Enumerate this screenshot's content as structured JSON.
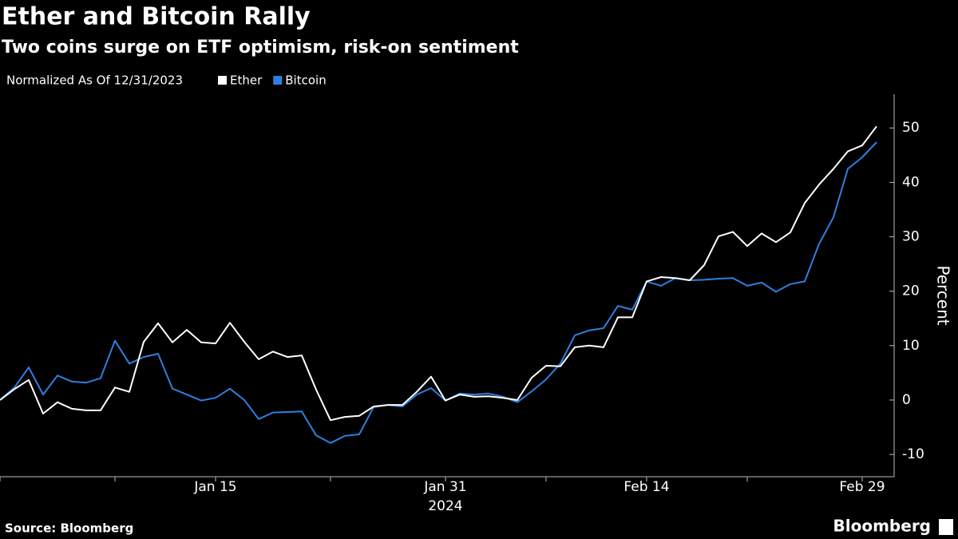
{
  "chart_data": {
    "type": "line",
    "title": "Ether and Bitcoin Rally",
    "subtitle": "Two coins surge on ETF optimism, risk-on sentiment",
    "legend_title": "Normalized As Of 12/31/2023",
    "y_label": "Percent",
    "x_sublabel": "2024",
    "source": "Source: Bloomberg",
    "brand": "Bloomberg",
    "x": [
      "2023-12-31",
      "2024-01-01",
      "2024-01-02",
      "2024-01-03",
      "2024-01-04",
      "2024-01-05",
      "2024-01-06",
      "2024-01-07",
      "2024-01-08",
      "2024-01-09",
      "2024-01-10",
      "2024-01-11",
      "2024-01-12",
      "2024-01-13",
      "2024-01-14",
      "2024-01-15",
      "2024-01-16",
      "2024-01-17",
      "2024-01-18",
      "2024-01-19",
      "2024-01-20",
      "2024-01-21",
      "2024-01-22",
      "2024-01-23",
      "2024-01-24",
      "2024-01-25",
      "2024-01-26",
      "2024-01-27",
      "2024-01-28",
      "2024-01-29",
      "2024-01-30",
      "2024-01-31",
      "2024-02-01",
      "2024-02-02",
      "2024-02-03",
      "2024-02-04",
      "2024-02-05",
      "2024-02-06",
      "2024-02-07",
      "2024-02-08",
      "2024-02-09",
      "2024-02-10",
      "2024-02-11",
      "2024-02-12",
      "2024-02-13",
      "2024-02-14",
      "2024-02-15",
      "2024-02-16",
      "2024-02-17",
      "2024-02-18",
      "2024-02-19",
      "2024-02-20",
      "2024-02-21",
      "2024-02-22",
      "2024-02-23",
      "2024-02-24",
      "2024-02-25",
      "2024-02-26",
      "2024-02-27",
      "2024-02-28",
      "2024-02-29",
      "2024-03-01"
    ],
    "series": [
      {
        "name": "Ether",
        "color": "#ffffff",
        "values": [
          0,
          2,
          3.7,
          -2.5,
          -0.4,
          -1.6,
          -1.9,
          -1.9,
          2.3,
          1.5,
          10.7,
          14.1,
          10.6,
          12.9,
          10.6,
          10.4,
          14.2,
          10.7,
          7.5,
          8.9,
          7.9,
          8.2,
          1.9,
          -3.7,
          -3.1,
          -2.9,
          -1.2,
          -0.9,
          -0.9,
          1.5,
          4.3,
          -0.1,
          1.0,
          0.6,
          0.7,
          0.4,
          0,
          4.1,
          6.3,
          6.2,
          9.7,
          10.0,
          9.7,
          15.2,
          15.2,
          21.8,
          22.6,
          22.4,
          22.0,
          24.8,
          30.1,
          30.9,
          28.3,
          30.6,
          29.0,
          30.8,
          36.2,
          39.6,
          42.5,
          45.7,
          46.8,
          50.3
        ]
      },
      {
        "name": "Bitcoin",
        "color": "#2f7fe0",
        "values": [
          0,
          2.3,
          6.0,
          1.0,
          4.5,
          3.4,
          3.2,
          4.0,
          10.9,
          6.7,
          7.9,
          8.5,
          2.1,
          1.0,
          -0.1,
          0.4,
          2.1,
          0,
          -3.5,
          -2.3,
          -2.2,
          -2.1,
          -6.5,
          -7.9,
          -6.6,
          -6.3,
          -1.3,
          -0.9,
          -1.2,
          1.0,
          2.2,
          -0.1,
          1.2,
          1.0,
          1.2,
          0.6,
          -0.4,
          1.6,
          3.8,
          6.7,
          11.9,
          12.8,
          13.2,
          17.3,
          16.6,
          21.8,
          21.0,
          22.4,
          22.0,
          22.1,
          22.3,
          22.4,
          21.0,
          21.6,
          19.9,
          21.3,
          21.8,
          28.7,
          33.6,
          42.5,
          44.6,
          47.4
        ]
      }
    ],
    "xlim": [
      "2023-12-31",
      "2024-03-02"
    ],
    "xticks": [
      {
        "value": "2024-01-15",
        "label": "Jan 15"
      },
      {
        "value": "2024-01-31",
        "label": "Jan 31"
      },
      {
        "value": "2024-02-14",
        "label": "Feb 14"
      },
      {
        "value": "2024-02-29",
        "label": "Feb 29"
      }
    ],
    "xminorticks": [
      "2023-12-31",
      "2024-01-08",
      "2024-01-23",
      "2024-02-07",
      "2024-02-21"
    ],
    "ylim": [
      -13.8,
      56.2
    ],
    "yticks": [
      -10,
      0,
      10,
      20,
      30,
      40,
      50
    ],
    "grid": false
  }
}
